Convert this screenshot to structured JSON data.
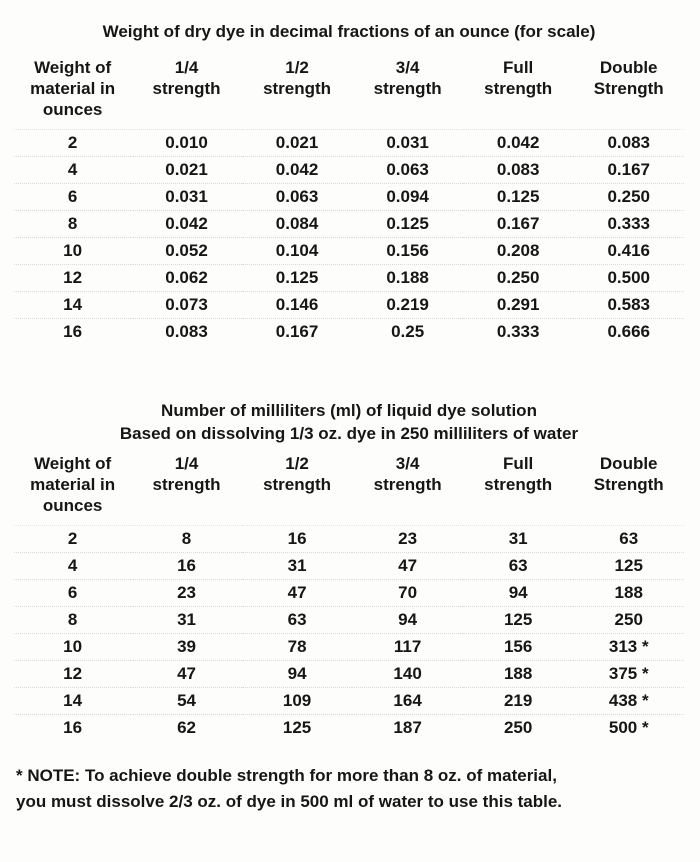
{
  "page": {
    "background": "#fdfdfb",
    "text_color": "#161616"
  },
  "dry_dye_table": {
    "title": "Weight of dry dye in decimal fractions of an ounce (for scale)",
    "headers": [
      "Weight of\nmaterial in\nounces",
      "1/4\nstrength",
      "1/2\nstrength",
      "3/4\nstrength",
      "Full\nstrength",
      "Double\nStrength"
    ],
    "rows": [
      [
        "2",
        "0.010",
        "0.021",
        "0.031",
        "0.042",
        "0.083"
      ],
      [
        "4",
        "0.021",
        "0.042",
        "0.063",
        "0.083",
        "0.167"
      ],
      [
        "6",
        "0.031",
        "0.063",
        "0.094",
        "0.125",
        "0.250"
      ],
      [
        "8",
        "0.042",
        "0.084",
        "0.125",
        "0.167",
        "0.333"
      ],
      [
        "10",
        "0.052",
        "0.104",
        "0.156",
        "0.208",
        "0.416"
      ],
      [
        "12",
        "0.062",
        "0.125",
        "0.188",
        "0.250",
        "0.500"
      ],
      [
        "14",
        "0.073",
        "0.146",
        "0.219",
        "0.291",
        "0.583"
      ],
      [
        "16",
        "0.083",
        "0.167",
        "0.25",
        "0.333",
        "0.666"
      ]
    ]
  },
  "liquid_dye_table": {
    "title_line1": "Number of milliliters (ml) of liquid dye solution",
    "title_line2": "Based on dissolving 1/3 oz. dye in 250 milliliters of water",
    "headers": [
      "Weight of\nmaterial in\nounces",
      "1/4\nstrength",
      "1/2\nstrength",
      "3/4\nstrength",
      "Full\nstrength",
      "Double\nStrength"
    ],
    "rows": [
      [
        "2",
        "8",
        "16",
        "23",
        "31",
        "63"
      ],
      [
        "4",
        "16",
        "31",
        "47",
        "63",
        "125"
      ],
      [
        "6",
        "23",
        "47",
        "70",
        "94",
        "188"
      ],
      [
        "8",
        "31",
        "63",
        "94",
        "125",
        "250"
      ],
      [
        "10",
        "39",
        "78",
        "117",
        "156",
        "313 *"
      ],
      [
        "12",
        "47",
        "94",
        "140",
        "188",
        "375 *"
      ],
      [
        "14",
        "54",
        "109",
        "164",
        "219",
        "438 *"
      ],
      [
        "16",
        "62",
        "125",
        "187",
        "250",
        "500 *"
      ]
    ]
  },
  "footnote": {
    "text": "* NOTE: To achieve double strength for more than 8 oz. of material,\nyou must dissolve 2/3 oz. of dye in 500 ml of water to use this table."
  }
}
